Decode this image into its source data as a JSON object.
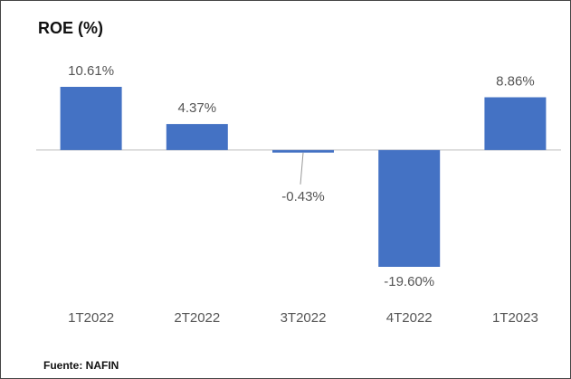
{
  "chart_data": {
    "type": "bar",
    "title": "ROE (%)",
    "categories": [
      "1T2022",
      "2T2022",
      "3T2022",
      "4T2022",
      "1T2023"
    ],
    "values": [
      10.61,
      4.37,
      -0.43,
      -19.6,
      8.86
    ],
    "value_labels": [
      "10.61%",
      "4.37%",
      "-0.43%",
      "-19.60%",
      "8.86%"
    ],
    "color": "#4472c4",
    "source": "Fuente: NAFIN"
  }
}
